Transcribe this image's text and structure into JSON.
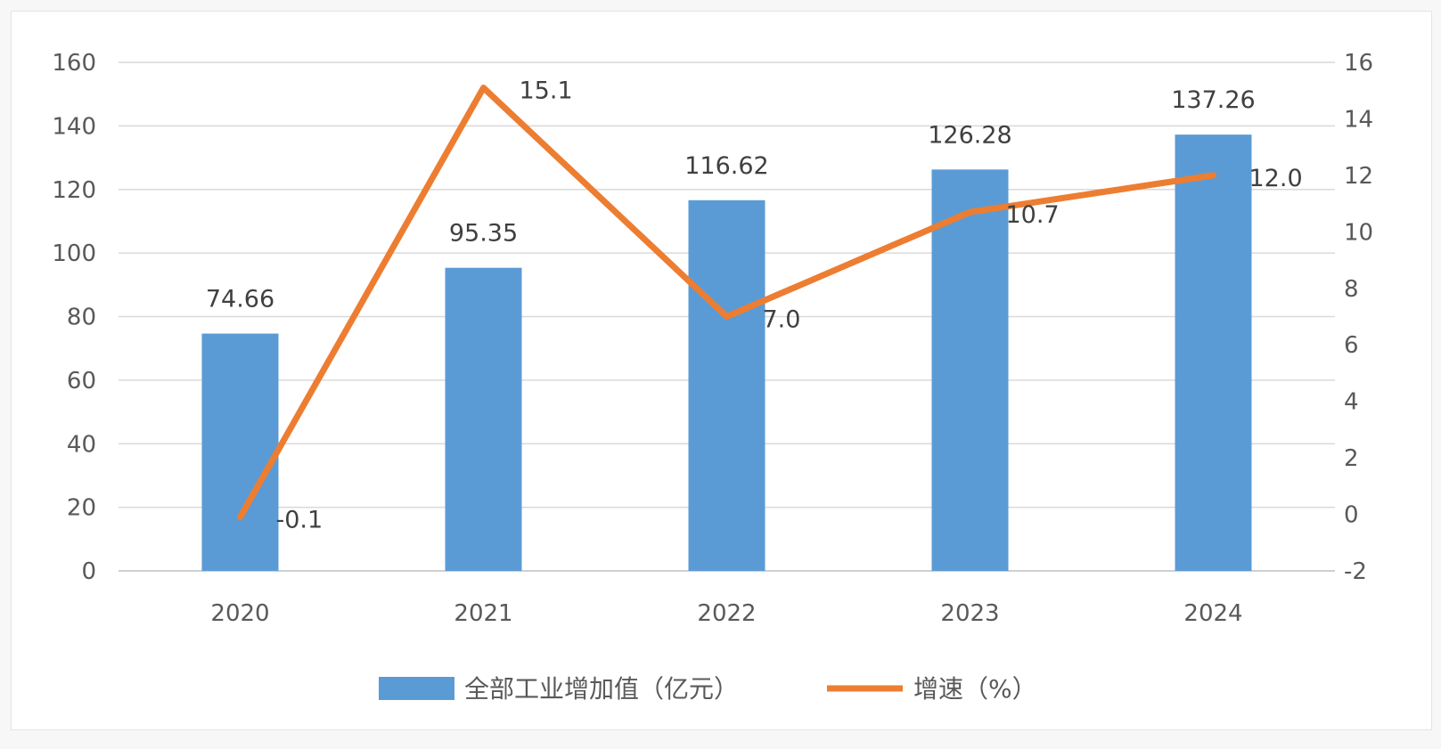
{
  "chart_data": {
    "type": "bar",
    "categories": [
      "2020",
      "2021",
      "2022",
      "2023",
      "2024"
    ],
    "series": [
      {
        "name": "全部工业增加值（亿元）",
        "type": "bar",
        "axis": "left",
        "values": [
          74.66,
          95.35,
          116.62,
          126.28,
          137.26
        ],
        "labels": [
          "74.66",
          "95.35",
          "116.62",
          "126.28",
          "137.26"
        ],
        "color": "#5b9bd5"
      },
      {
        "name": "增速（%）",
        "type": "line",
        "axis": "right",
        "values": [
          -0.1,
          15.1,
          7.0,
          10.7,
          12.0
        ],
        "labels": [
          "-0.1",
          "15.1",
          "7.0",
          "10.7",
          "12.0"
        ],
        "color": "#ed7d31"
      }
    ],
    "y_left": {
      "range": [
        0,
        160
      ],
      "ticks": [
        0,
        20,
        40,
        60,
        80,
        100,
        120,
        140,
        160
      ],
      "tick_labels": [
        "0",
        "20",
        "40",
        "60",
        "80",
        "100",
        "120",
        "140",
        "160"
      ]
    },
    "y_right": {
      "range": [
        -2,
        16
      ],
      "ticks": [
        -2,
        0,
        2,
        4,
        6,
        8,
        10,
        12,
        14,
        16
      ],
      "tick_labels": [
        "-2",
        "0",
        "2",
        "4",
        "6",
        "8",
        "10",
        "12",
        "14",
        "16"
      ]
    },
    "grid": true,
    "gridline_color": "#d9d9d9",
    "legend_position": "bottom",
    "title": "",
    "xlabel": "",
    "ylabel": ""
  }
}
